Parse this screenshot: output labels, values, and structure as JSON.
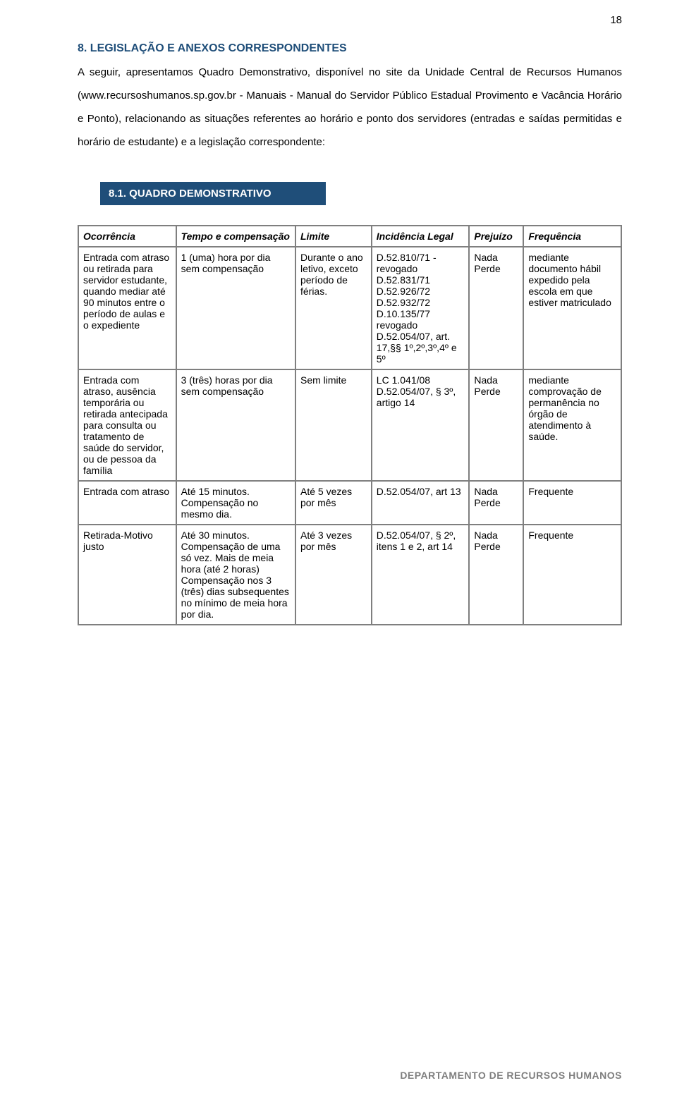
{
  "page_number": "18",
  "heading8": "8.  LEGISLAÇÃO E ANEXOS CORRESPONDENTES",
  "para8": "A seguir, apresentamos Quadro Demonstrativo, disponível no site da Unidade Central de Recursos Humanos (www.recursoshumanos.sp.gov.br - Manuais - Manual do Servidor Público Estadual Provimento e Vacância Horário e Ponto), relacionando as situações referentes ao horário e ponto dos servidores (entradas e saídas permitidas e horário de estudante) e a legislação correspondente:",
  "sub_banner": "8.1. QUADRO DEMONSTRATIVO",
  "table": {
    "columns": [
      "Ocorrência",
      "Tempo e compensação",
      "Limite",
      "Incidência Legal",
      "Prejuízo",
      "Frequência"
    ],
    "rows": [
      [
        "Entrada com atraso ou retirada para servidor estudante, quando mediar até 90 minutos entre o período de aulas e o expediente",
        "1 (uma) hora por dia sem compensação",
        "Durante o ano letivo, exceto período de férias.",
        "D.52.810/71 - revogado D.52.831/71 D.52.926/72 D.52.932/72 D.10.135/77 revogado D.52.054/07, art. 17,§§ 1º,2º,3º,4º e 5º",
        "Nada Perde",
        "mediante documento hábil expedido pela escola em que estiver matriculado"
      ],
      [
        "Entrada com atraso, ausência temporária ou retirada antecipada para consulta ou tratamento de saúde do servidor, ou de pessoa da família",
        "3 (três) horas por dia sem compensação",
        "Sem limite",
        "LC 1.041/08 D.52.054/07, § 3º, artigo 14",
        "Nada Perde",
        "mediante comprovação de permanência no órgão de atendimento à saúde."
      ],
      [
        "Entrada com atraso",
        "Até 15 minutos. Compensação no mesmo dia.",
        "Até 5 vezes por mês",
        "D.52.054/07, art 13",
        "Nada Perde",
        "Frequente"
      ],
      [
        "Retirada-Motivo justo",
        "Até 30 minutos. Compensação de uma só vez.\nMais de meia hora (até 2 horas) Compensação nos 3 (três) dias subsequentes no mínimo de meia hora por dia.",
        "Até 3 vezes por mês",
        "D.52.054/07, § 2º, itens 1 e 2, art 14",
        "Nada Perde",
        "Frequente"
      ]
    ],
    "border_color": "#7f7f7f",
    "header_font_style": "bold italic",
    "col_widths_pct": [
      18,
      22,
      14,
      18,
      10,
      18
    ]
  },
  "footer": "DEPARTAMENTO  DE  RECURSOS  HUMANOS",
  "colors": {
    "heading": "#1f4e79",
    "banner_bg": "#1f4e79",
    "banner_text": "#ffffff",
    "footer_text": "#7f7f7f",
    "body_text": "#000000",
    "table_border": "#7f7f7f"
  }
}
